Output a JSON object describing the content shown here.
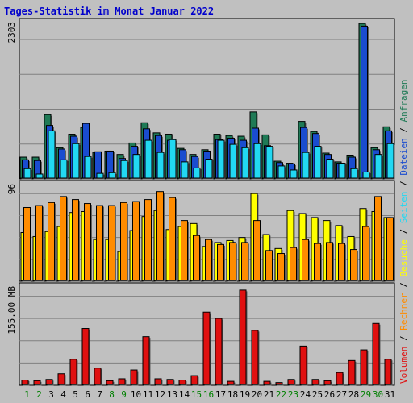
{
  "chart_data": {
    "type": "bar",
    "title": "Tages-Statistik im Monat Januar 2022",
    "days": [
      "1",
      "2",
      "3",
      "4",
      "5",
      "6",
      "7",
      "8",
      "9",
      "10",
      "11",
      "12",
      "13",
      "14",
      "15",
      "16",
      "17",
      "18",
      "19",
      "20",
      "21",
      "22",
      "23",
      "24",
      "25",
      "26",
      "27",
      "28",
      "29",
      "30",
      "31"
    ],
    "weekend_days": [
      "1",
      "2",
      "8",
      "9",
      "15",
      "16",
      "22",
      "23",
      "29",
      "30"
    ],
    "colors": {
      "background": "#c0c0c0",
      "panel": "#c0c0c0",
      "title": "#0000cc",
      "anfragen": "#1f7a56",
      "dateien": "#1a4ccf",
      "seiten": "#22d8f2",
      "besuche": "#ffff00",
      "rechner": "#ff8c00",
      "volumen": "#e01010",
      "weekday_label": "#000000",
      "weekend_label": "#008000"
    },
    "legend_right": [
      {
        "label": "Anfragen",
        "color": "#1f7a56"
      },
      {
        "label": "Dateien",
        "color": "#1a4ccf"
      },
      {
        "label": "Seiten",
        "color": "#22d8f2"
      },
      {
        "label": "Besuche",
        "color": "#ffff00"
      },
      {
        "label": "Rechner",
        "color": "#ff8c00"
      },
      {
        "label": "Volumen",
        "color": "#e01010"
      }
    ],
    "legend_separator": "/",
    "panels": {
      "top": {
        "max_label": "2303",
        "ymax": 2303,
        "series": [
          {
            "name": "Anfragen",
            "values": [
              310,
              310,
              940,
              450,
              650,
              750,
              380,
              400,
              350,
              520,
              820,
              670,
              650,
              440,
              350,
              420,
              650,
              630,
              620,
              980,
              640,
              250,
              220,
              840,
              690,
              370,
              240,
              340,
              2290,
              450,
              760
            ]
          },
          {
            "name": "Dateien",
            "values": [
              270,
              260,
              780,
              430,
              620,
              810,
              390,
              400,
              290,
              470,
              730,
              630,
              560,
              420,
              320,
              400,
              570,
              590,
              560,
              740,
              480,
              230,
              210,
              750,
              660,
              350,
              220,
              310,
              2250,
              420,
              700
            ]
          },
          {
            "name": "Seiten",
            "values": [
              140,
              60,
              700,
              270,
              510,
              320,
              70,
              80,
              260,
              350,
              560,
              380,
              570,
              240,
              150,
              280,
              560,
              500,
              450,
              510,
              470,
              180,
              120,
              380,
              470,
              280,
              220,
              140,
              90,
              350,
              510
            ]
          }
        ]
      },
      "middle": {
        "max_label": "96",
        "ymax": 96,
        "series": [
          {
            "name": "Besuche",
            "values": [
              48,
              44,
              49,
              54,
              68,
              69,
              41,
              41,
              29,
              50,
              64,
              70,
              51,
              54,
              57,
              34,
              38,
              40,
              43,
              87,
              46,
              32,
              70,
              67,
              63,
              60,
              55,
              44,
              72,
              69,
              63
            ]
          },
          {
            "name": "Rechner",
            "values": [
              73,
              75,
              78,
              84,
              81,
              77,
              75,
              75,
              78,
              79,
              81,
              89,
              83,
              60,
              45,
              41,
              36,
              38,
              38,
              60,
              30,
              27,
              33,
              41,
              37,
              38,
              37,
              31,
              54,
              84,
              63
            ]
          }
        ]
      },
      "bottom": {
        "max_label": "155.00 MB",
        "ymax": 155,
        "series": [
          {
            "name": "Volumen",
            "values": [
              7,
              6,
              8,
              17,
              40,
              89,
              26,
              6,
              9,
              23,
              76,
              9,
              8,
              7,
              14,
              115,
              105,
              5,
              150,
              86,
              5,
              3,
              8,
              61,
              8,
              6,
              19,
              38,
              55,
              97,
              40
            ]
          }
        ]
      }
    }
  }
}
